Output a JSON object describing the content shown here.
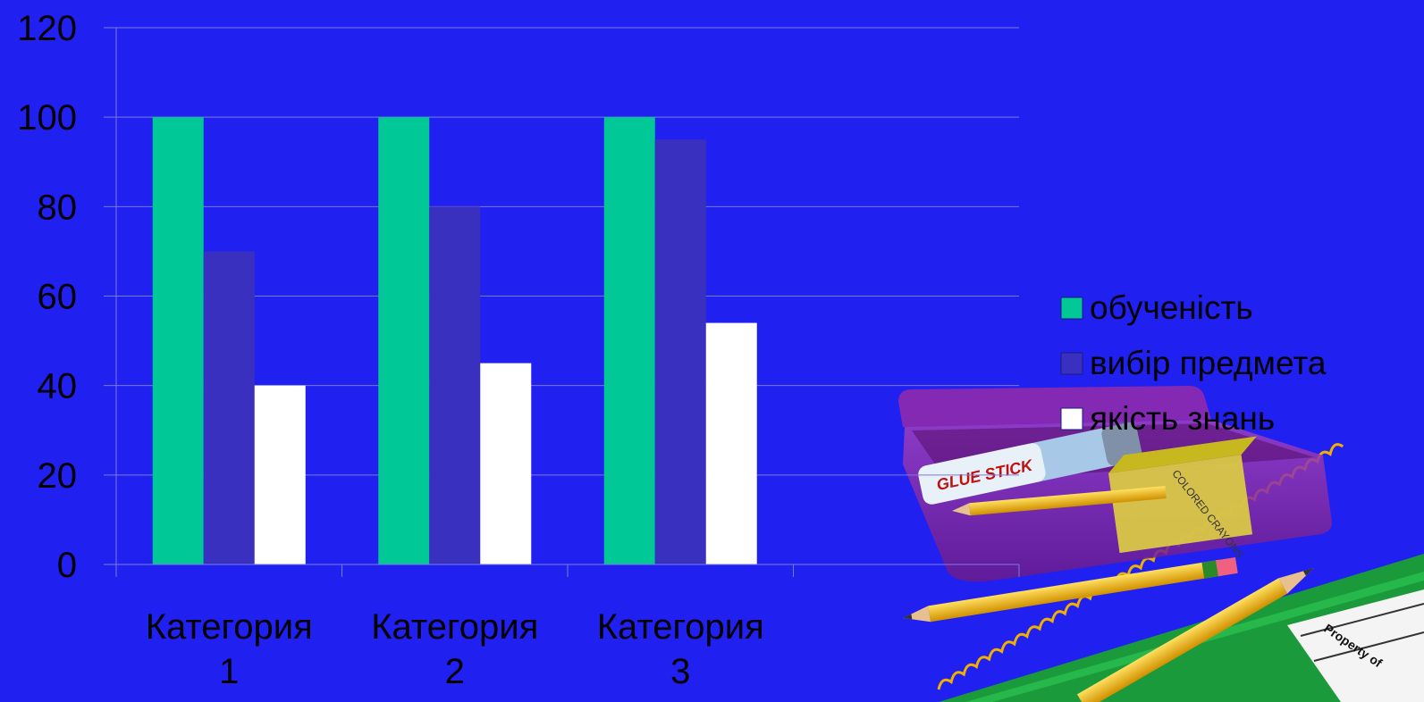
{
  "chart_data": {
    "type": "bar",
    "categories": [
      [
        "Категория",
        "1"
      ],
      [
        "Категория",
        "2"
      ],
      [
        "Категория",
        "3"
      ]
    ],
    "series": [
      {
        "name": "обученість",
        "values": [
          100,
          100,
          100
        ],
        "color": "#00c896"
      },
      {
        "name": "вибір предмета",
        "values": [
          70,
          80,
          95
        ],
        "color": "#3a30c0"
      },
      {
        "name": "якість знань",
        "values": [
          40,
          45,
          54
        ],
        "color": "#ffffff"
      }
    ],
    "ylim": [
      0,
      120
    ],
    "yticks": [
      0,
      20,
      40,
      60,
      80,
      100,
      120
    ],
    "grid": true,
    "legend_position": "right"
  },
  "decoration": {
    "glue_label": "GLUE STICK",
    "crayons_label": "COLORED CRAYONS",
    "notebook_label": "Property of"
  }
}
